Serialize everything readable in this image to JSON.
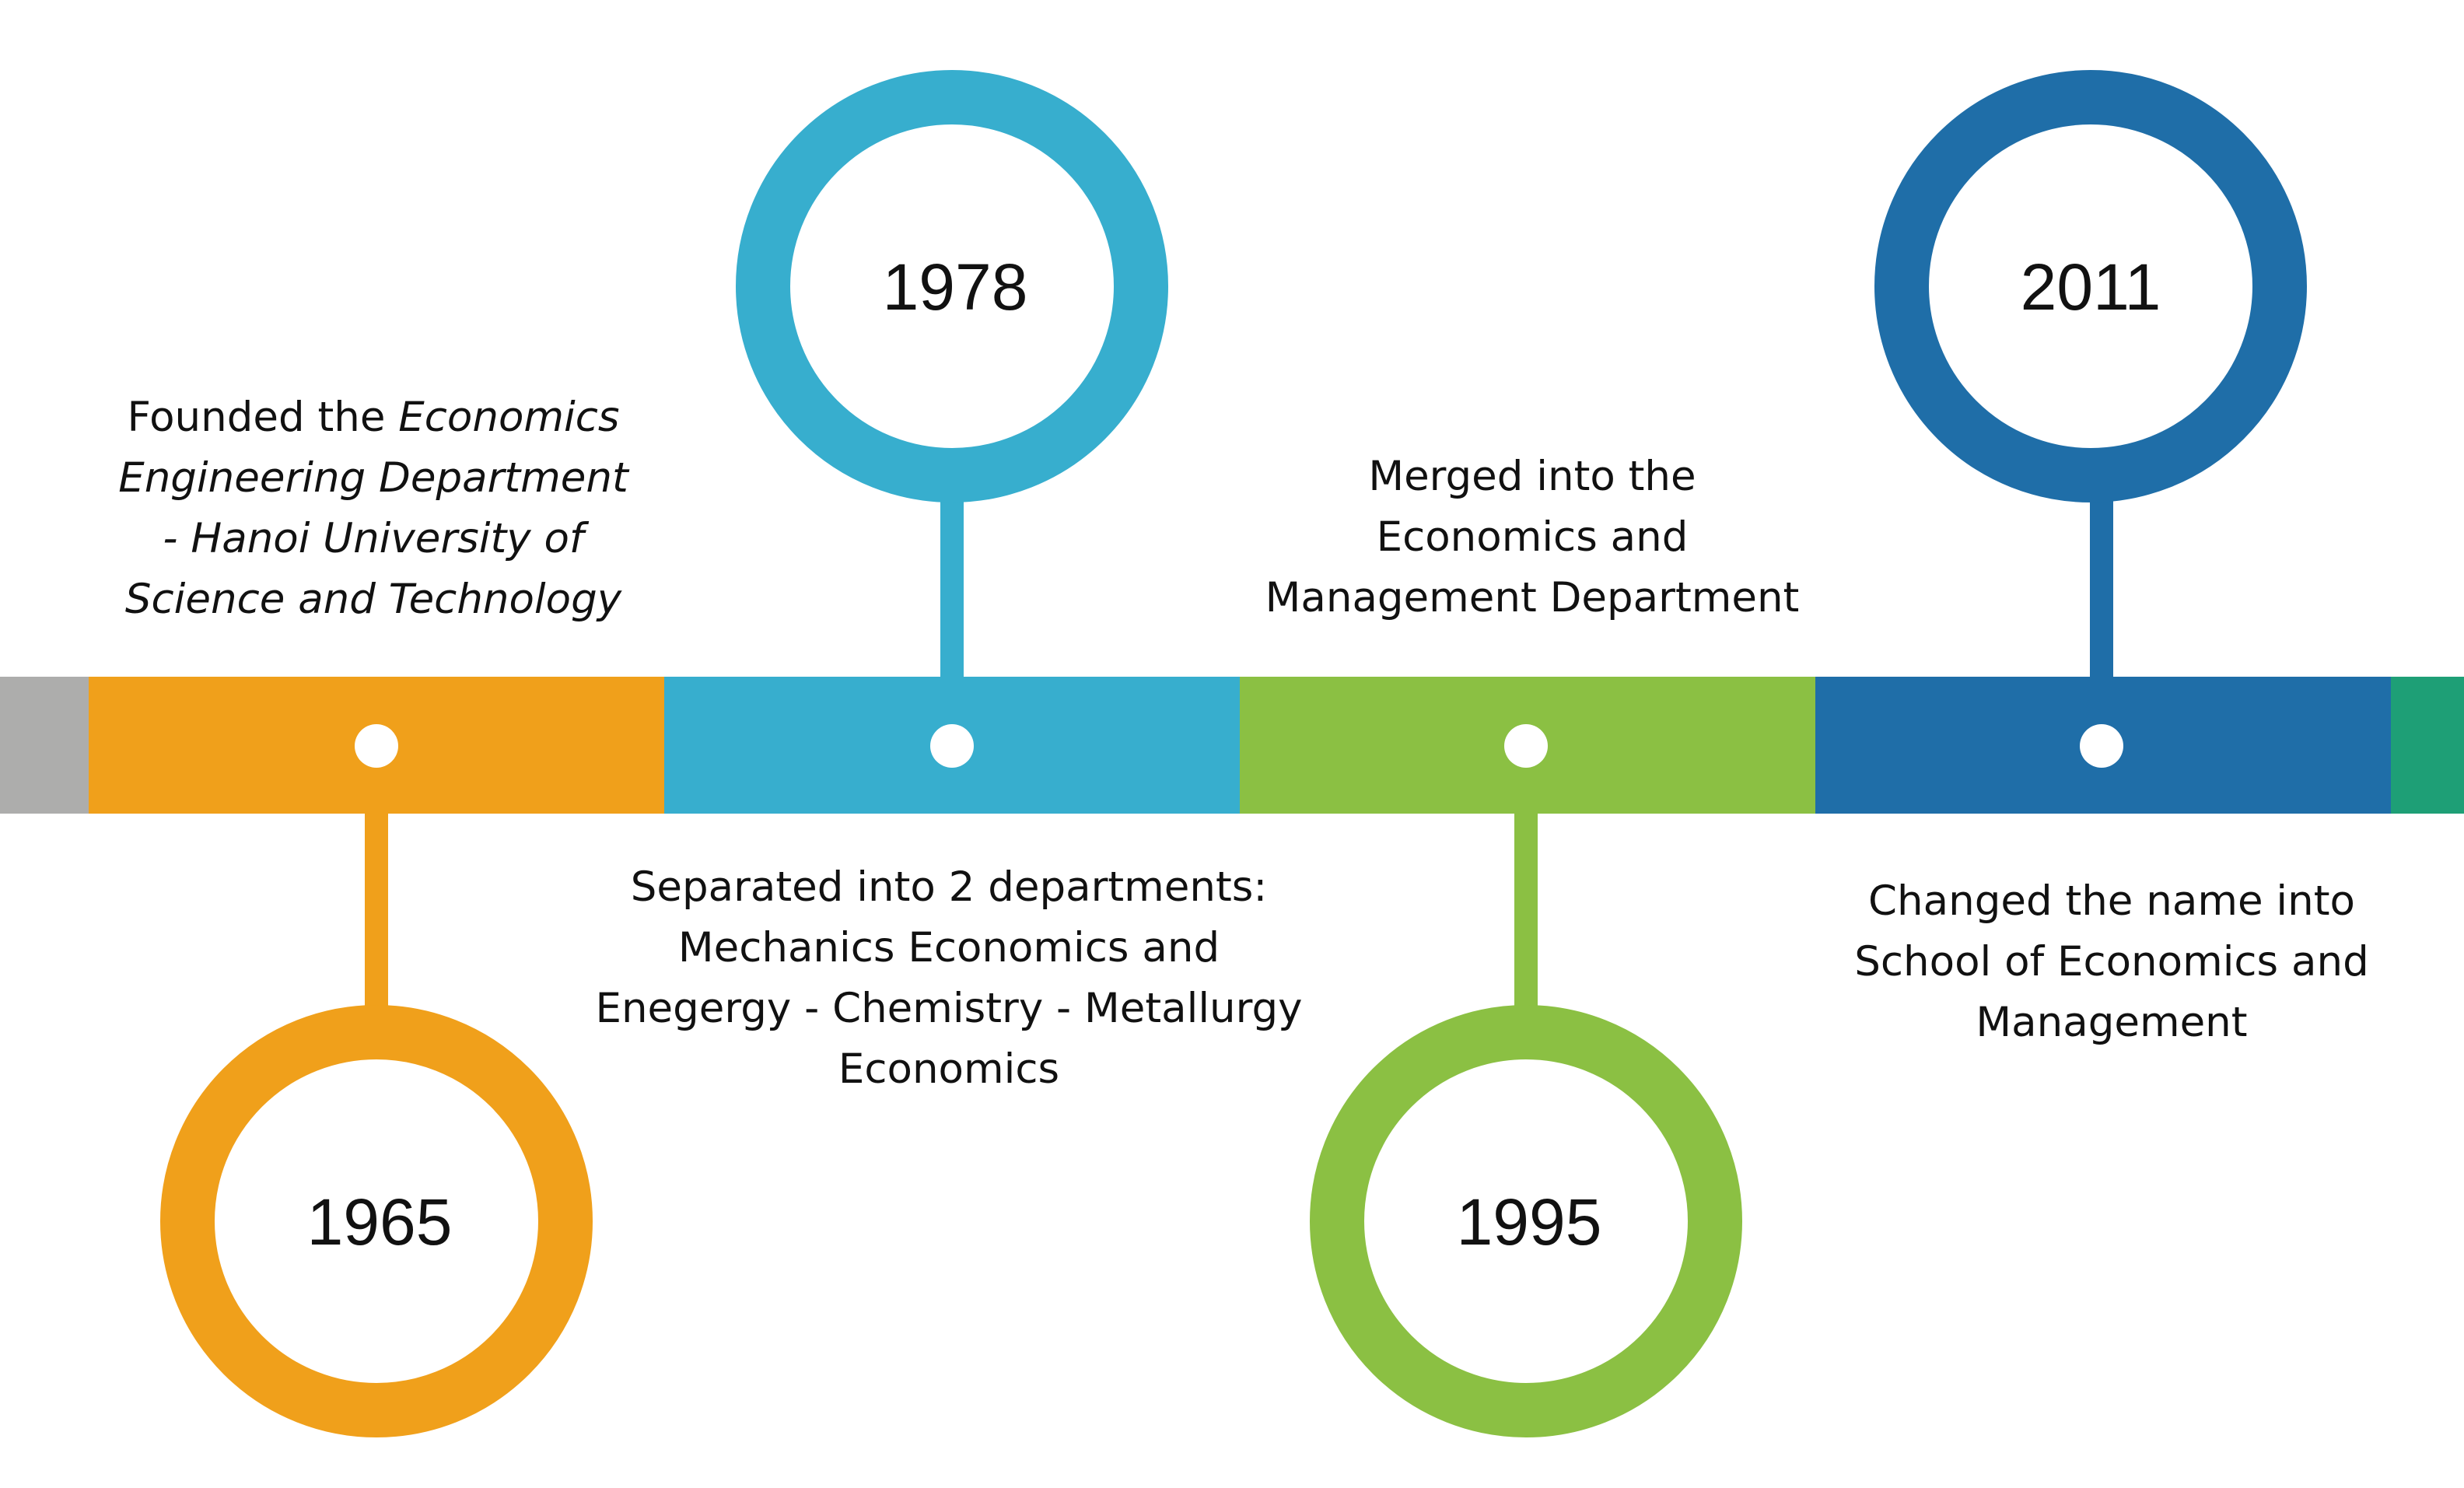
{
  "colors": {
    "gray": "#adadac",
    "orange": "#f0a01b",
    "light_blue": "#37aece",
    "green": "#8bc043",
    "dark_blue": "#1f6ea8",
    "teal": "#1e9f76",
    "dot": "#ffffff"
  },
  "events": [
    {
      "year": "1965",
      "color": "#f0a01b",
      "desc_plain": "Founded the ",
      "desc_em": "Economics Engineering Department - Hanoi University of Science and Technology"
    },
    {
      "year": "1978",
      "color": "#37aece",
      "desc_plain": "Separated into 2 departments: Mechanics Economics and Enegergy - Chemistry - Metallurgy Economics"
    },
    {
      "year": "1995",
      "color": "#8bc043",
      "desc_plain": "Merged into the Economics and Management Department"
    },
    {
      "year": "2011",
      "color": "#1f6ea8",
      "desc_plain": "Changed the name into School of Economics and Management"
    }
  ]
}
